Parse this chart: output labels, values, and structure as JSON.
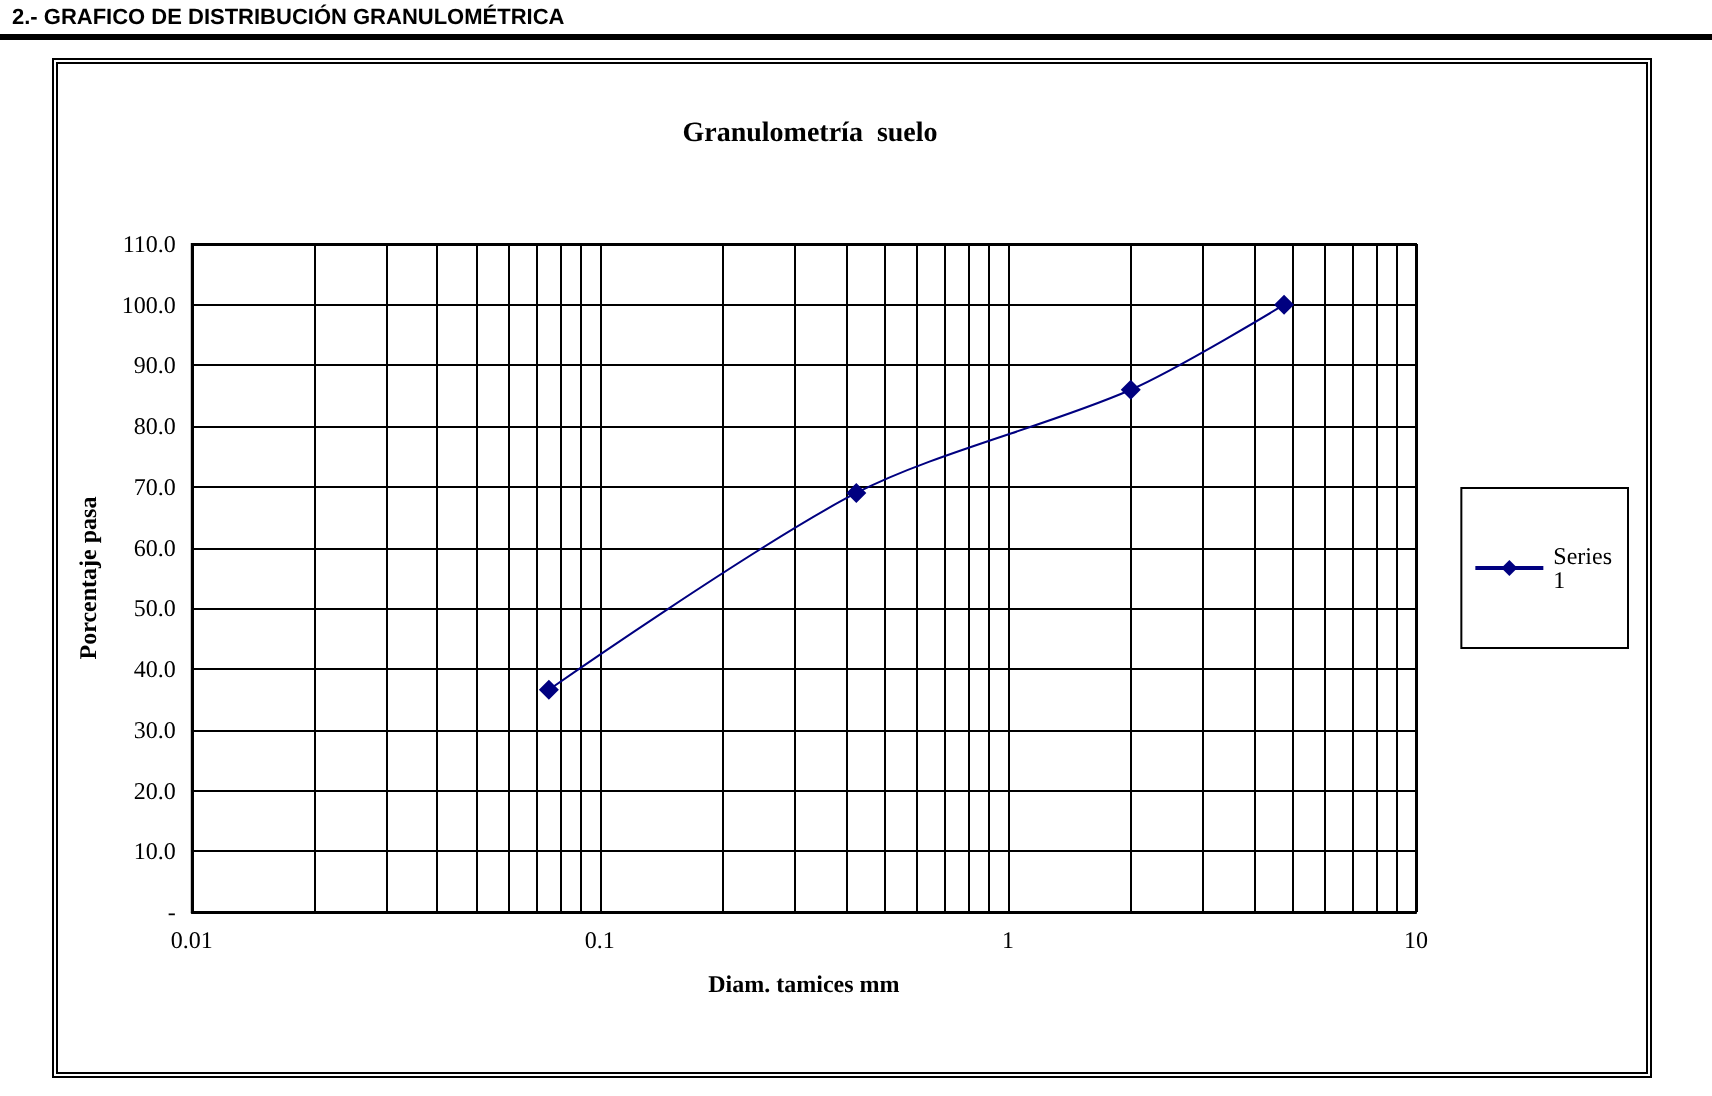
{
  "chart_data": {
    "type": "line",
    "title": "Granulometría  suelo",
    "xlabel": "Diam. tamices mm",
    "ylabel": "Porcentaje pasa",
    "annotations": [
      "2.- GRAFICO DE DISTRIBUCIÓN GRANULOMÉTRICA"
    ],
    "x": [
      0.075,
      0.425,
      2,
      4.75
    ],
    "series": [
      {
        "name": "Series1",
        "color": "#000080",
        "values": [
          36.6,
          69,
          86,
          100
        ]
      }
    ],
    "log": "x",
    "xlim": [
      0.01,
      10
    ],
    "xticks": [
      0.01,
      {
        "value": 0.02,
        "label": null
      },
      {
        "value": 0.03,
        "label": null
      },
      {
        "value": 0.04,
        "label": null
      },
      {
        "value": 0.05,
        "label": null
      },
      {
        "value": 0.06,
        "label": null
      },
      {
        "value": 0.07,
        "label": null
      },
      {
        "value": 0.08,
        "label": null
      },
      {
        "value": 0.09,
        "label": null
      },
      0.1,
      {
        "value": 0.2,
        "label": null
      },
      {
        "value": 0.3,
        "label": null
      },
      {
        "value": 0.4,
        "label": null
      },
      {
        "value": 0.5,
        "label": null
      },
      {
        "value": 0.6,
        "label": null
      },
      {
        "value": 0.7,
        "label": null
      },
      {
        "value": 0.8,
        "label": null
      },
      {
        "value": 0.9,
        "label": null
      },
      1,
      {
        "value": 2,
        "label": null
      },
      {
        "value": 3,
        "label": null
      },
      {
        "value": 4,
        "label": null
      },
      {
        "value": 5,
        "label": null
      },
      {
        "value": 6,
        "label": null
      },
      {
        "value": 7,
        "label": null
      },
      {
        "value": 8,
        "label": null
      },
      {
        "value": 9,
        "label": null
      },
      10
    ],
    "ylim": [
      0,
      110
    ],
    "yticks": [
      {
        "value": 0,
        "label": "-"
      },
      {
        "value": 10,
        "label": "10.0"
      },
      {
        "value": 20,
        "label": "20.0"
      },
      {
        "value": 30,
        "label": "30.0"
      },
      {
        "value": 40,
        "label": "40.0"
      },
      {
        "value": 50,
        "label": "50.0"
      },
      {
        "value": 60,
        "label": "60.0"
      },
      {
        "value": 70,
        "label": "70.0"
      },
      {
        "value": 80,
        "label": "80.0"
      },
      {
        "value": 90,
        "label": "90.0"
      },
      {
        "value": 100,
        "label": "100.0"
      },
      {
        "value": 110,
        "label": "110.0"
      }
    ],
    "grid": true,
    "legend": "right",
    "marker": "diamond",
    "line_style": "solid"
  }
}
